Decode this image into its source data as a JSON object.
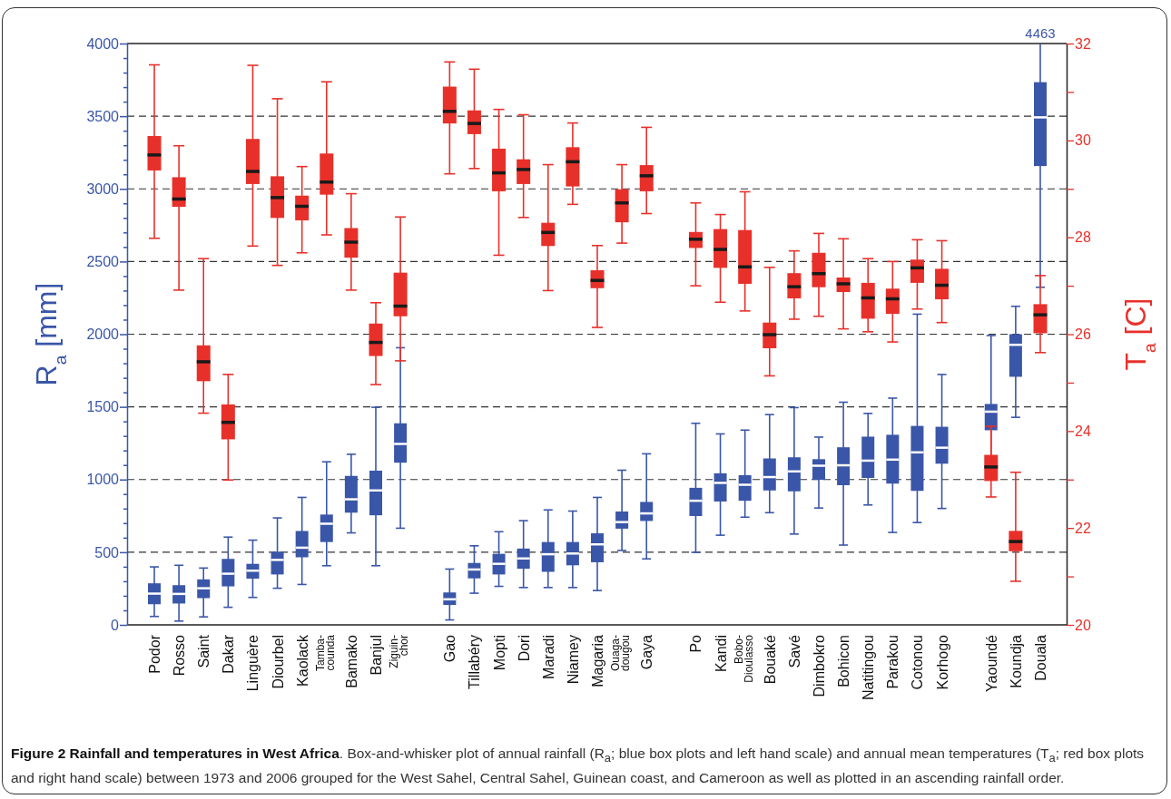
{
  "chart_data": {
    "type": "box",
    "title": "Figure 2 Rainfall and temperatures in West Africa",
    "subtitle": ". Box-and-whisker plot of annual rainfall (R$_{a}$; blue box plots and left hand scale) and annual mean temperatures (T$_{a}$; red box plots and right hand scale) between 1973 and 2006 grouped for the West Sahel, Central Sahel, Guinean coast, and Cameroon as well as plotted in an ascending rainfall order.",
    "ylabel": "R$_{a}$ [mm]",
    "y2label": "T$_{a}$ [C]",
    "categories": [
      "Podor",
      "Rosso",
      "Saint",
      "Dakar",
      "Linguère",
      "Diourbel",
      "Kaolack",
      "Tamba-counda",
      "Bamako",
      "Banjul",
      "Ziguin-chor",
      null,
      "Gao",
      "Tillabéry",
      "Mopti",
      "Dori",
      "Maradi",
      "Niamey",
      "Magaria",
      "Ouaga-dougou",
      "Gaya",
      null,
      "Po",
      "Kandi",
      "Bobo-Dioulasso",
      "Bouaké",
      "Savé",
      "Dimbokro",
      "Bohicon",
      "Natitingou",
      "Parakou",
      "Cotonou",
      "Korhogo",
      null,
      "Yaoundé",
      "Koundja",
      "Douala"
    ],
    "ylim": [
      0,
      4000
    ],
    "yticks": [
      0,
      {
        "value": 100,
        "label": null
      },
      {
        "value": 200,
        "label": null
      },
      {
        "value": 300,
        "label": null
      },
      {
        "value": 400,
        "label": null
      },
      500,
      {
        "value": 600,
        "label": null
      },
      {
        "value": 700,
        "label": null
      },
      {
        "value": 800,
        "label": null
      },
      {
        "value": 900,
        "label": null
      },
      1000,
      {
        "value": 1100,
        "label": null
      },
      {
        "value": 1200,
        "label": null
      },
      {
        "value": 1300,
        "label": null
      },
      {
        "value": 1400,
        "label": null
      },
      1500,
      {
        "value": 1600,
        "label": null
      },
      {
        "value": 1700,
        "label": null
      },
      {
        "value": 1800,
        "label": null
      },
      {
        "value": 1900,
        "label": null
      },
      2000,
      {
        "value": 2100,
        "label": null
      },
      {
        "value": 2200,
        "label": null
      },
      {
        "value": 2300,
        "label": null
      },
      {
        "value": 2400,
        "label": null
      },
      2500,
      {
        "value": 2600,
        "label": null
      },
      {
        "value": 2700,
        "label": null
      },
      {
        "value": 2800,
        "label": null
      },
      {
        "value": 2900,
        "label": null
      },
      3000,
      {
        "value": 3100,
        "label": null
      },
      {
        "value": 3200,
        "label": null
      },
      {
        "value": 3300,
        "label": null
      },
      {
        "value": 3400,
        "label": null
      },
      3500,
      {
        "value": 3600,
        "label": null
      },
      {
        "value": 3700,
        "label": null
      },
      {
        "value": 3800,
        "label": null
      },
      {
        "value": 3900,
        "label": null
      },
      4000
    ],
    "y2lim": [
      20,
      32
    ],
    "y2ticks": [
      20,
      {
        "value": 21,
        "label": null
      },
      22,
      {
        "value": 23,
        "label": null
      },
      24,
      {
        "value": 25,
        "label": null
      },
      26,
      {
        "value": 27,
        "label": null
      },
      28,
      {
        "value": 29,
        "label": null
      },
      30,
      {
        "value": 31,
        "label": null
      },
      32
    ],
    "grid": "y",
    "line_style": "dashed",
    "annotations": [
      "4463"
    ],
    "series": [
      {
        "color": "#3a56a8",
        "axis": "y",
        "boxes": [
          {
            "low": 58,
            "q1": 142,
            "median": 215,
            "q3": 286,
            "high": 399
          },
          {
            "low": 26,
            "q1": 147,
            "median": 213,
            "q3": 273,
            "high": 410
          },
          {
            "low": 55,
            "q1": 184,
            "median": 252,
            "q3": 313,
            "high": 391
          },
          {
            "low": 121,
            "q1": 265,
            "median": 352,
            "q3": 454,
            "high": 604
          },
          {
            "low": 189,
            "q1": 318,
            "median": 373,
            "q3": 420,
            "high": 583
          },
          {
            "low": 252,
            "q1": 347,
            "median": 447,
            "q3": 504,
            "high": 736
          },
          {
            "low": 278,
            "q1": 465,
            "median": 531,
            "q3": 646,
            "high": 877
          },
          {
            "low": 407,
            "q1": 570,
            "median": 696,
            "q3": 759,
            "high": 1122
          },
          {
            "low": 633,
            "q1": 772,
            "median": 864,
            "q3": 1025,
            "high": 1174
          },
          {
            "low": 407,
            "q1": 754,
            "median": 925,
            "q3": 1061,
            "high": 1497
          },
          {
            "low": 665,
            "q1": 1116,
            "median": 1245,
            "q3": 1387,
            "high": 1907
          },
          null,
          {
            "low": 34,
            "q1": 137,
            "median": 176,
            "q3": 223,
            "high": 384
          },
          {
            "low": 218,
            "q1": 320,
            "median": 381,
            "q3": 426,
            "high": 544
          },
          {
            "low": 265,
            "q1": 347,
            "median": 420,
            "q3": 489,
            "high": 641
          },
          {
            "low": 257,
            "q1": 386,
            "median": 457,
            "q3": 525,
            "high": 717
          },
          {
            "low": 257,
            "q1": 365,
            "median": 486,
            "q3": 570,
            "high": 791
          },
          {
            "low": 257,
            "q1": 410,
            "median": 491,
            "q3": 570,
            "high": 783
          },
          {
            "low": 236,
            "q1": 431,
            "median": 554,
            "q3": 630,
            "high": 877
          },
          {
            "low": 512,
            "q1": 662,
            "median": 707,
            "q3": 780,
            "high": 1064
          },
          {
            "low": 454,
            "q1": 715,
            "median": 767,
            "q3": 846,
            "high": 1177
          },
          null,
          {
            "low": 499,
            "q1": 749,
            "median": 854,
            "q3": 943,
            "high": 1387
          },
          {
            "low": 617,
            "q1": 849,
            "median": 977,
            "q3": 1043,
            "high": 1314
          },
          {
            "low": 741,
            "q1": 854,
            "median": 964,
            "q3": 1030,
            "high": 1340
          },
          {
            "low": 772,
            "q1": 925,
            "median": 1017,
            "q3": 1145,
            "high": 1447
          },
          {
            "low": 625,
            "q1": 919,
            "median": 1056,
            "q3": 1153,
            "high": 1495
          },
          {
            "low": 804,
            "q1": 998,
            "median": 1095,
            "q3": 1140,
            "high": 1292
          },
          {
            "low": 549,
            "q1": 961,
            "median": 1098,
            "q3": 1222,
            "high": 1532
          },
          {
            "low": 825,
            "q1": 1011,
            "median": 1130,
            "q3": 1295,
            "high": 1455
          },
          {
            "low": 636,
            "q1": 972,
            "median": 1137,
            "q3": 1308,
            "high": 1560
          },
          {
            "low": 704,
            "q1": 922,
            "median": 1187,
            "q3": 1369,
            "high": 2138
          },
          {
            "low": 801,
            "q1": 1109,
            "median": 1219,
            "q3": 1363,
            "high": 1723
          },
          null,
          {
            "low": 1090,
            "q1": 1339,
            "median": 1467,
            "q3": 1520,
            "high": 1991
          },
          {
            "low": 1428,
            "q1": 1707,
            "median": 1927,
            "q3": 2000,
            "high": 2192
          },
          {
            "low": 2323,
            "q1": 3157,
            "median": 3492,
            "q3": 3734,
            "high": 4463
          }
        ]
      },
      {
        "color": "#e8302a",
        "axis": "y2",
        "boxes": [
          {
            "low": 27.98,
            "q1": 29.38,
            "median": 29.7,
            "q3": 30.09,
            "high": 31.56
          },
          {
            "low": 26.91,
            "q1": 28.63,
            "median": 28.79,
            "q3": 29.24,
            "high": 29.89
          },
          {
            "low": 24.37,
            "q1": 25.03,
            "median": 25.43,
            "q3": 25.77,
            "high": 27.56
          },
          {
            "low": 22.99,
            "q1": 23.83,
            "median": 24.18,
            "q3": 24.55,
            "high": 25.17
          },
          {
            "low": 27.82,
            "q1": 29.1,
            "median": 29.36,
            "q3": 30.03,
            "high": 31.55
          },
          {
            "low": 27.42,
            "q1": 28.4,
            "median": 28.82,
            "q3": 29.26,
            "high": 30.86
          },
          {
            "low": 27.68,
            "q1": 28.35,
            "median": 28.64,
            "q3": 28.86,
            "high": 29.46
          },
          {
            "low": 28.05,
            "q1": 28.88,
            "median": 29.14,
            "q3": 29.73,
            "high": 31.21
          },
          {
            "low": 26.91,
            "q1": 27.58,
            "median": 27.9,
            "q3": 28.19,
            "high": 28.9
          },
          {
            "low": 24.96,
            "q1": 25.55,
            "median": 25.83,
            "q3": 26.22,
            "high": 26.65
          },
          {
            "low": 25.45,
            "q1": 26.37,
            "median": 26.58,
            "q3": 27.27,
            "high": 28.42
          },
          null,
          {
            "low": 29.31,
            "q1": 30.35,
            "median": 30.6,
            "q3": 31.11,
            "high": 31.62
          },
          {
            "low": 29.42,
            "q1": 30.13,
            "median": 30.35,
            "q3": 30.62,
            "high": 31.47
          },
          {
            "low": 27.63,
            "q1": 28.95,
            "median": 29.33,
            "q3": 29.83,
            "high": 30.64
          },
          {
            "low": 28.41,
            "q1": 29.1,
            "median": 29.4,
            "q3": 29.61,
            "high": 30.53
          },
          {
            "low": 26.9,
            "q1": 27.82,
            "median": 28.1,
            "q3": 28.3,
            "high": 29.5
          },
          {
            "low": 28.68,
            "q1": 29.05,
            "median": 29.56,
            "q3": 29.86,
            "high": 30.36
          },
          {
            "low": 26.14,
            "q1": 26.95,
            "median": 27.11,
            "q3": 27.32,
            "high": 27.83
          },
          {
            "low": 27.88,
            "q1": 28.31,
            "median": 28.71,
            "q3": 28.99,
            "high": 29.5
          },
          {
            "low": 28.49,
            "q1": 28.95,
            "median": 29.27,
            "q3": 29.49,
            "high": 30.27
          },
          null,
          {
            "low": 27.0,
            "q1": 27.78,
            "median": 27.96,
            "q3": 28.11,
            "high": 28.71
          },
          {
            "low": 26.66,
            "q1": 27.37,
            "median": 27.75,
            "q3": 28.17,
            "high": 28.47
          },
          {
            "low": 26.48,
            "q1": 27.04,
            "median": 27.39,
            "q3": 28.15,
            "high": 28.94
          },
          {
            "low": 25.14,
            "q1": 25.71,
            "median": 25.99,
            "q3": 26.24,
            "high": 27.38
          },
          {
            "low": 26.31,
            "q1": 26.74,
            "median": 26.98,
            "q3": 27.26,
            "high": 27.72
          },
          {
            "low": 26.37,
            "q1": 26.97,
            "median": 27.25,
            "q3": 27.68,
            "high": 28.08
          },
          {
            "low": 26.11,
            "q1": 26.87,
            "median": 27.04,
            "q3": 27.17,
            "high": 27.97
          },
          {
            "low": 26.05,
            "q1": 26.32,
            "median": 26.75,
            "q3": 27.06,
            "high": 27.56
          },
          {
            "low": 25.84,
            "q1": 26.42,
            "median": 26.73,
            "q3": 26.94,
            "high": 27.5
          },
          {
            "low": 26.52,
            "q1": 27.06,
            "median": 27.37,
            "q3": 27.54,
            "high": 27.95
          },
          {
            "low": 26.24,
            "q1": 26.72,
            "median": 27.01,
            "q3": 27.35,
            "high": 27.93
          },
          null,
          {
            "low": 22.64,
            "q1": 22.97,
            "median": 23.26,
            "q3": 23.51,
            "high": 24.1
          },
          {
            "low": 20.9,
            "q1": 21.52,
            "median": 21.72,
            "q3": 21.94,
            "high": 23.15
          },
          {
            "low": 25.62,
            "q1": 26.02,
            "median": 26.4,
            "q3": 26.62,
            "high": 27.21
          }
        ]
      }
    ]
  }
}
